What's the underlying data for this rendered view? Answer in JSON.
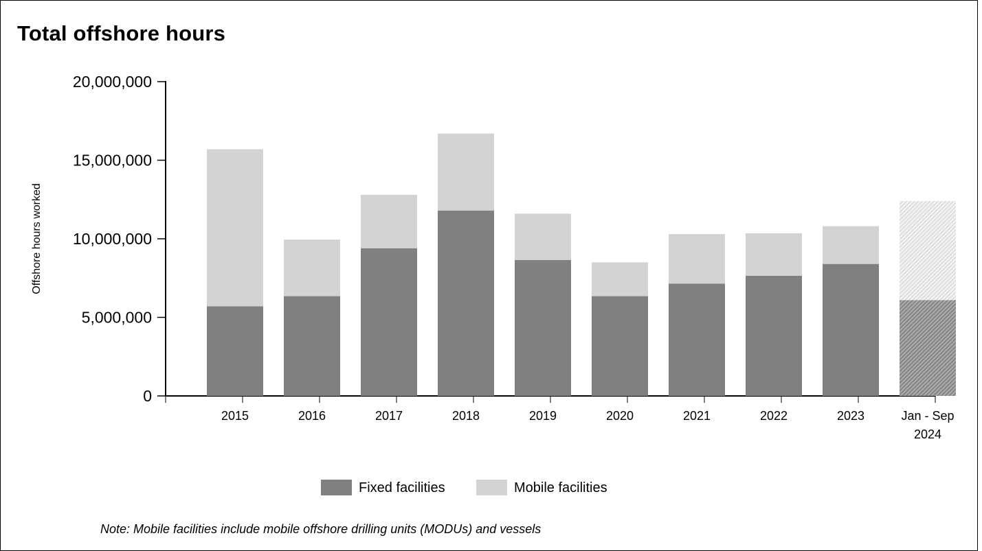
{
  "chart_data": {
    "type": "bar",
    "stacked": true,
    "title": "Total offshore hours",
    "ylabel": "Offshore hours worked",
    "xlabel": "",
    "ylim": [
      0,
      20000000
    ],
    "yticks": [
      0,
      5000000,
      10000000,
      15000000,
      20000000
    ],
    "ytick_labels": [
      "0",
      "5,000,000",
      "10,000,000",
      "15,000,000",
      "20,000,000"
    ],
    "categories": [
      [
        "2015"
      ],
      [
        "2016"
      ],
      [
        "2017"
      ],
      [
        "2018"
      ],
      [
        "2019"
      ],
      [
        "2020"
      ],
      [
        "2021"
      ],
      [
        "2022"
      ],
      [
        "2023"
      ],
      [
        "Jan - Sep",
        "2024"
      ]
    ],
    "series": [
      {
        "name": "Fixed facilities",
        "color": "#808080",
        "values": [
          5700000,
          6350000,
          9400000,
          11800000,
          8650000,
          6350000,
          7150000,
          7650000,
          8400000,
          6100000
        ]
      },
      {
        "name": "Mobile facilities",
        "color": "#d3d3d3",
        "values": [
          10000000,
          3600000,
          3400000,
          4900000,
          2950000,
          2150000,
          3150000,
          2700000,
          2400000,
          6300000
        ]
      }
    ],
    "hatched_categories": [
      9
    ],
    "grid": false,
    "legend_position": "bottom-center",
    "note": "Note: Mobile facilities include mobile offshore drilling units (MODUs) and vessels"
  }
}
